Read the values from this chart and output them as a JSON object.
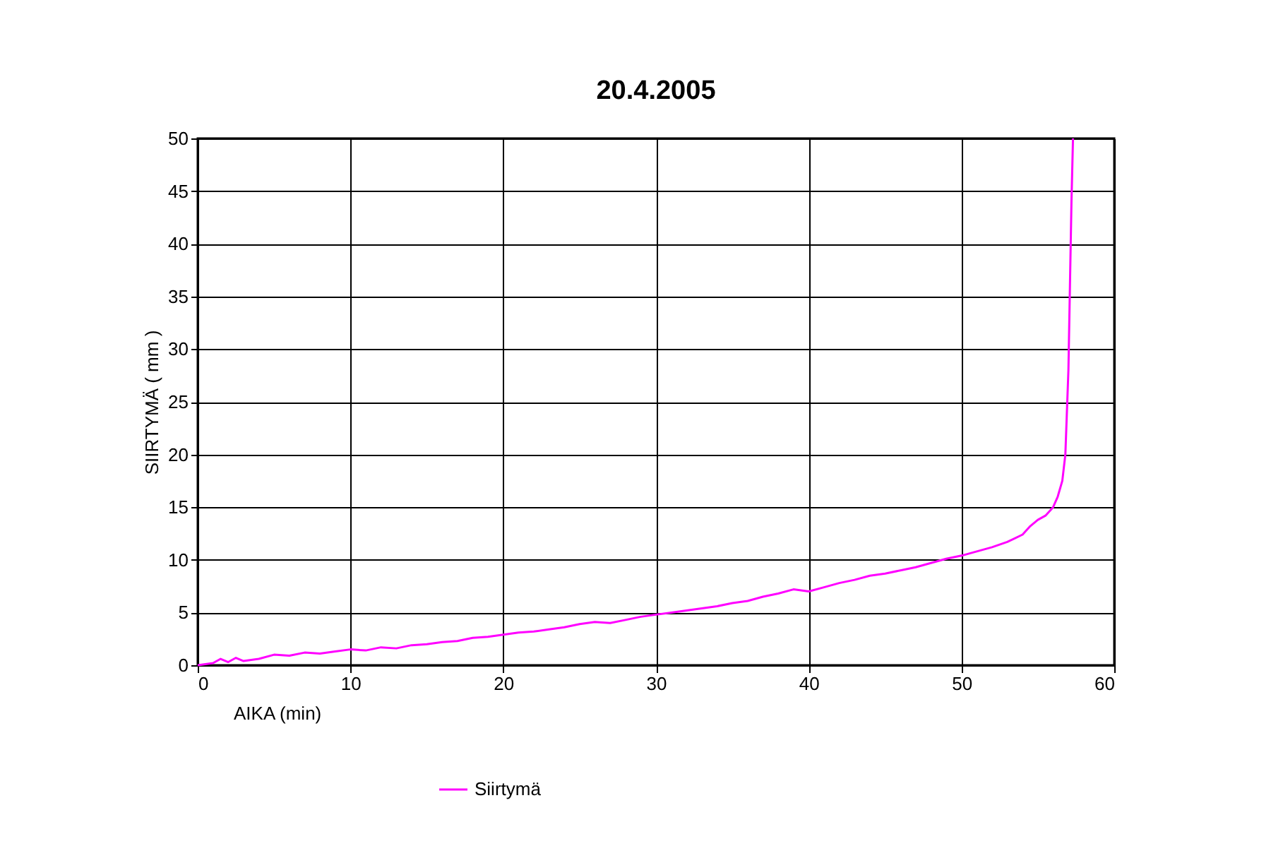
{
  "chart_data": {
    "type": "line",
    "title": "20.4.2005",
    "xlabel": "AIKA  (min)",
    "ylabel": "SIIRTYMÄ  ( mm )",
    "xlim": [
      0,
      60
    ],
    "xticks": [
      0,
      10,
      20,
      30,
      40,
      50,
      60
    ],
    "ylim": [
      0,
      50
    ],
    "yticks": [
      0,
      5,
      10,
      15,
      20,
      25,
      30,
      35,
      40,
      45,
      50
    ],
    "grid": true,
    "legend": "bottom",
    "marker": "none",
    "line_style": "solid",
    "series": [
      {
        "name": "Siirtymä",
        "color": "#ff00ff",
        "x": [
          0,
          1,
          1.5,
          2,
          2.5,
          3,
          4,
          5,
          6,
          7,
          8,
          9,
          10,
          11,
          12,
          13,
          14,
          15,
          16,
          17,
          18,
          19,
          20,
          21,
          22,
          23,
          24,
          25,
          26,
          27,
          28,
          29,
          30,
          31,
          32,
          33,
          34,
          35,
          36,
          37,
          38,
          39,
          40,
          41,
          42,
          43,
          44,
          45,
          46,
          47,
          48,
          49,
          50,
          51,
          52,
          53,
          54,
          54.5,
          55,
          55.5,
          56,
          56.3,
          56.6,
          56.8,
          57,
          57.1,
          57.2,
          57.3
        ],
        "values": [
          0,
          0.2,
          0.6,
          0.3,
          0.7,
          0.4,
          0.6,
          1.0,
          0.9,
          1.2,
          1.1,
          1.3,
          1.5,
          1.4,
          1.7,
          1.6,
          1.9,
          2.0,
          2.2,
          2.3,
          2.6,
          2.7,
          2.9,
          3.1,
          3.2,
          3.4,
          3.6,
          3.9,
          4.1,
          4.0,
          4.3,
          4.6,
          4.8,
          5.0,
          5.2,
          5.4,
          5.6,
          5.9,
          6.1,
          6.5,
          6.8,
          7.2,
          7.0,
          7.4,
          7.8,
          8.1,
          8.5,
          8.7,
          9.0,
          9.3,
          9.7,
          10.1,
          10.4,
          10.8,
          11.2,
          11.7,
          12.4,
          13.2,
          13.8,
          14.2,
          15.0,
          16.0,
          17.5,
          20,
          28,
          36,
          44,
          50
        ]
      }
    ]
  }
}
